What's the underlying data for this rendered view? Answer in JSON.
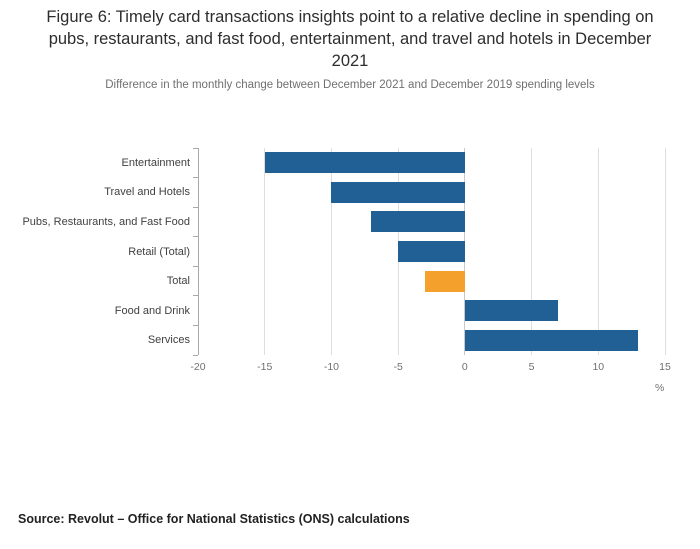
{
  "header": {
    "title": "Figure 6: Timely card transactions insights point to a relative decline in spending on pubs, restaurants, and fast food, entertainment, and travel and hotels in December 2021",
    "subtitle": "Difference in the monthly change between December 2021 and December 2019 spending levels"
  },
  "footer": {
    "source": "Source: Revolut – Office for National Statistics (ONS) calculations"
  },
  "chart_data": {
    "type": "bar",
    "orientation": "horizontal",
    "title": "Figure 6: Timely card transactions insights point to a relative decline in spending on pubs, restaurants, and fast food, entertainment, and travel and hotels in December 2021",
    "subtitle": "Difference in the monthly change between December 2021 and December 2019 spending levels",
    "categories": [
      "Entertainment",
      "Travel and Hotels",
      "Pubs, Restaurants, and Fast Food",
      "Retail (Total)",
      "Total",
      "Food and Drink",
      "Services"
    ],
    "values": [
      -15,
      -10,
      -7,
      -5,
      -3,
      7,
      13
    ],
    "highlight_category": "Total",
    "xlabel": "%",
    "ylabel": "",
    "xlim": [
      -20,
      15
    ],
    "xticks": [
      -20,
      -15,
      -10,
      -5,
      0,
      5,
      10,
      15
    ],
    "bar_color": "#206095",
    "highlight_color": "#f4a02c",
    "grid": true,
    "legend": "none"
  }
}
